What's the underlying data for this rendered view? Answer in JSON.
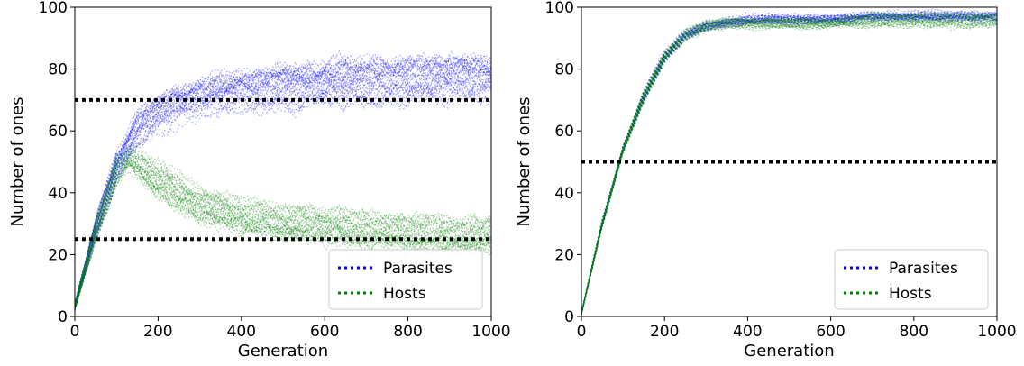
{
  "chart_data": [
    {
      "type": "line",
      "xlabel": "Generation",
      "ylabel": "Number of ones",
      "xlim": [
        0,
        1000
      ],
      "ylim": [
        0,
        100
      ],
      "xticks": [
        "0",
        "200",
        "400",
        "600",
        "800",
        "1000"
      ],
      "yticks": [
        "0",
        "20",
        "40",
        "60",
        "80",
        "100"
      ],
      "legend_position": "bottom-right",
      "legend": [
        {
          "label": "Parasites",
          "color": "#0000ff"
        },
        {
          "label": "Hosts",
          "color": "#008000"
        }
      ],
      "reference_lines": [
        70,
        25
      ],
      "series": [
        {
          "name": "Parasites",
          "color": "#0000ff",
          "x": [
            0,
            50,
            100,
            150,
            200,
            300,
            400,
            500,
            600,
            700,
            800,
            900,
            1000
          ],
          "y": [
            3,
            28,
            48,
            60,
            66,
            71,
            73,
            74,
            75,
            76,
            76,
            77,
            77
          ],
          "spread": [
            1,
            3,
            4,
            5,
            5,
            5,
            5,
            6,
            6,
            6,
            6,
            6,
            6
          ]
        },
        {
          "name": "Hosts",
          "color": "#008000",
          "x": [
            0,
            50,
            100,
            130,
            200,
            300,
            400,
            500,
            600,
            700,
            800,
            900,
            1000
          ],
          "y": [
            3,
            28,
            47,
            51,
            44,
            36,
            32,
            30,
            29,
            28,
            27,
            26,
            26
          ],
          "spread": [
            1,
            3,
            4,
            3,
            5,
            5,
            5,
            5,
            5,
            5,
            5,
            5,
            5
          ]
        }
      ]
    },
    {
      "type": "line",
      "xlabel": "Generation",
      "ylabel": "Number of ones",
      "xlim": [
        0,
        1000
      ],
      "ylim": [
        0,
        100
      ],
      "xticks": [
        "0",
        "200",
        "400",
        "600",
        "800",
        "1000"
      ],
      "yticks": [
        "0",
        "20",
        "40",
        "60",
        "80",
        "100"
      ],
      "legend_position": "bottom-right",
      "legend": [
        {
          "label": "Parasites",
          "color": "#0000ff"
        },
        {
          "label": "Hosts",
          "color": "#008000"
        }
      ],
      "reference_lines": [
        50
      ],
      "series": [
        {
          "name": "Parasites",
          "color": "#0000ff",
          "x": [
            0,
            50,
            100,
            150,
            200,
            250,
            300,
            350,
            400,
            500,
            600,
            700,
            800,
            900,
            1000
          ],
          "y": [
            1,
            30,
            54,
            71,
            84,
            91,
            94,
            95,
            96,
            96,
            96,
            97,
            97,
            97,
            97
          ],
          "spread": [
            0.5,
            1,
            1,
            1.5,
            1.5,
            1.5,
            1.5,
            1.5,
            1.5,
            1.5,
            1.5,
            1.5,
            1.5,
            1.5,
            1.5
          ]
        },
        {
          "name": "Hosts",
          "color": "#008000",
          "x": [
            0,
            50,
            100,
            150,
            200,
            250,
            300,
            350,
            400,
            500,
            600,
            700,
            800,
            900,
            1000
          ],
          "y": [
            1,
            30,
            54,
            71,
            84,
            91,
            94,
            95,
            95,
            95,
            95,
            96,
            96,
            96,
            96
          ],
          "spread": [
            0.5,
            1,
            1,
            1.5,
            1.5,
            1.5,
            1.5,
            1.5,
            1.5,
            1.5,
            1.5,
            2,
            2,
            2,
            2
          ]
        }
      ]
    }
  ]
}
